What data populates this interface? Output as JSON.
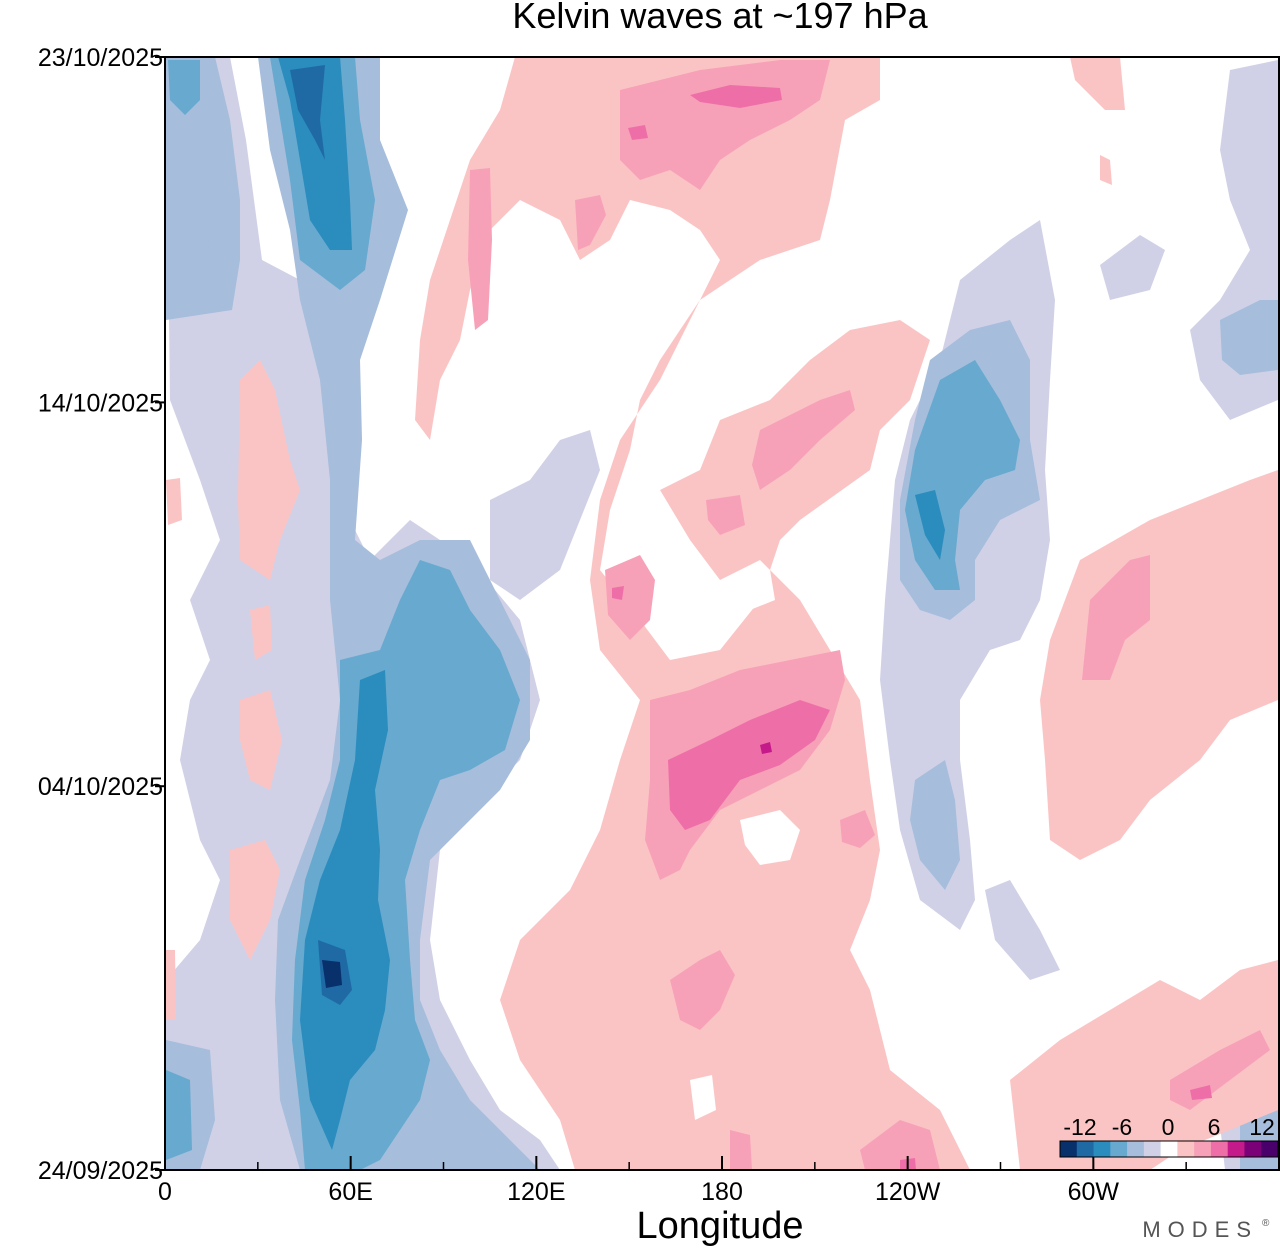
{
  "chart_data": {
    "type": "heatmap",
    "title": "Kelvin waves at ~197 hPa",
    "xlabel": "Longitude",
    "ylabel": "",
    "x_range_deg_east": [
      0,
      360
    ],
    "x_ticks": [
      {
        "lon": 0,
        "label": "0"
      },
      {
        "lon": 60,
        "label": "60E"
      },
      {
        "lon": 120,
        "label": "120E"
      },
      {
        "lon": 180,
        "label": "180"
      },
      {
        "lon": 240,
        "label": "120W"
      },
      {
        "lon": 300,
        "label": "60W"
      }
    ],
    "x_minor_step_deg": 30,
    "y_range_dates": [
      "24/09/2025",
      "23/10/2025"
    ],
    "y_ticks": [
      "23/10/2025",
      "14/10/2025",
      "04/10/2025",
      "24/09/2025"
    ],
    "colorbar": {
      "levels": [
        -12,
        -10,
        -8,
        -6,
        -4,
        -2,
        2,
        4,
        6,
        8,
        10,
        12
      ],
      "tick_labels": [
        "-12",
        "-6",
        "0",
        "6",
        "12"
      ],
      "colors": [
        "#08306b",
        "#1f6aa5",
        "#2b8cbe",
        "#67a9cf",
        "#a6bddb",
        "#d0d1e6",
        "#ffffff",
        "#fbc4c4",
        "#f7a1b8",
        "#ee6fa8",
        "#c51b8a",
        "#7a0177",
        "#49006a"
      ]
    },
    "features": [
      {
        "sign": "negative",
        "peak": -12,
        "lon": [
          40,
          70
        ],
        "dates": [
          "15/10/2025",
          "23/10/2025"
        ]
      },
      {
        "sign": "negative",
        "peak": -12,
        "lon": [
          45,
          70
        ],
        "dates": [
          "27/09/2025",
          "04/10/2025"
        ]
      },
      {
        "sign": "negative",
        "peak": -10,
        "lon": [
          65,
          110
        ],
        "dates": [
          "04/10/2025",
          "12/10/2025"
        ]
      },
      {
        "sign": "negative",
        "peak": -10,
        "lon": [
          240,
          265
        ],
        "dates": [
          "08/10/2025",
          "16/10/2025"
        ]
      },
      {
        "sign": "positive",
        "peak": 10,
        "lon": [
          160,
          210
        ],
        "dates": [
          "02/10/2025",
          "07/10/2025"
        ]
      },
      {
        "sign": "positive",
        "peak": 8,
        "lon": [
          150,
          230
        ],
        "dates": [
          "19/10/2025",
          "23/10/2025"
        ]
      },
      {
        "sign": "positive",
        "peak": 8,
        "lon": [
          300,
          360
        ],
        "dates": [
          "24/09/2025",
          "28/09/2025"
        ]
      },
      {
        "sign": "positive",
        "peak": 6,
        "lon": [
          300,
          330
        ],
        "dates": [
          "05/10/2025",
          "09/10/2025"
        ]
      }
    ]
  },
  "brand": "MODES"
}
